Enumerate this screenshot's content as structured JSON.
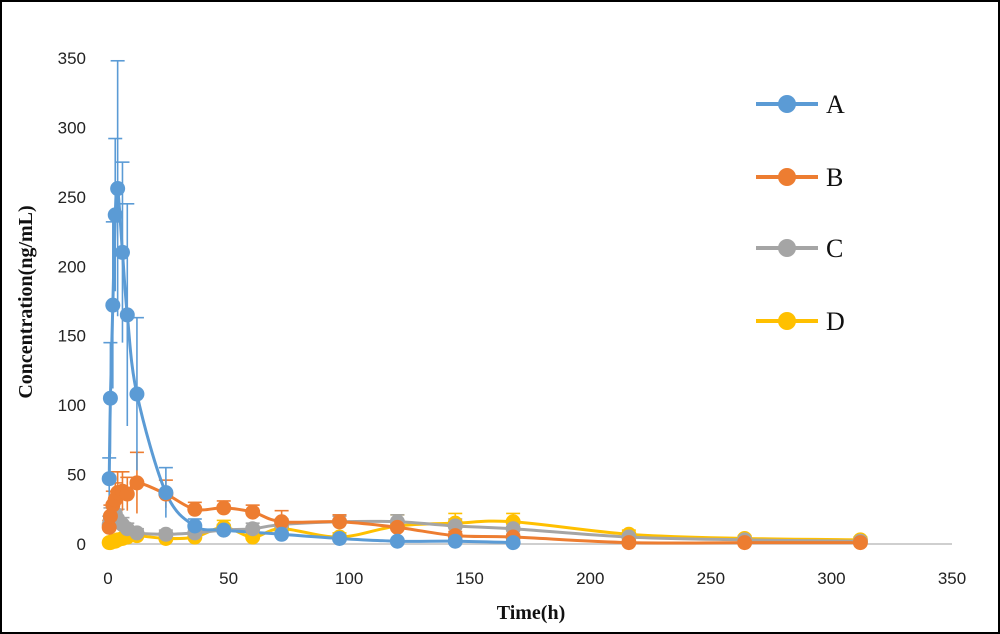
{
  "chart_data": {
    "type": "line",
    "title": "",
    "xlabel": "Time(h)",
    "ylabel": "Concentration(ng/mL)",
    "xlim": [
      0,
      350
    ],
    "ylim": [
      0,
      350
    ],
    "xticks": [
      0,
      50,
      100,
      150,
      200,
      250,
      300,
      350
    ],
    "yticks": [
      0,
      50,
      100,
      150,
      200,
      250,
      300,
      350
    ],
    "grid": false,
    "legend_position": "right",
    "series": [
      {
        "name": "A",
        "color": "#5B9BD5",
        "x": [
          0.5,
          1,
          2,
          3,
          4,
          6,
          8,
          12,
          24,
          36,
          48,
          72,
          96,
          120,
          144,
          168
        ],
        "y": [
          47,
          105,
          172,
          237,
          256,
          210,
          165,
          108,
          37,
          13,
          10,
          7,
          4,
          2,
          2,
          1
        ],
        "err": [
          15,
          40,
          60,
          55,
          92,
          65,
          80,
          55,
          18,
          5,
          4,
          3,
          2,
          1,
          1,
          1
        ]
      },
      {
        "name": "B",
        "color": "#ED7D31",
        "x": [
          0.5,
          1,
          2,
          3,
          4,
          6,
          8,
          12,
          24,
          36,
          48,
          60,
          72,
          96,
          120,
          144,
          168,
          216,
          264,
          312
        ],
        "y": [
          12,
          20,
          28,
          32,
          37,
          38,
          36,
          44,
          36,
          25,
          26,
          23,
          16,
          16,
          12,
          6,
          5,
          1,
          1,
          1
        ],
        "err": [
          5,
          8,
          10,
          12,
          15,
          14,
          12,
          22,
          10,
          5,
          5,
          5,
          8,
          5,
          4,
          3,
          2,
          1,
          1,
          1
        ]
      },
      {
        "name": "C",
        "color": "#A5A5A5",
        "x": [
          0.5,
          1,
          2,
          3,
          4,
          6,
          8,
          12,
          24,
          36,
          48,
          60,
          72,
          96,
          120,
          144,
          168,
          216,
          264,
          312
        ],
        "y": [
          14,
          18,
          20,
          22,
          18,
          14,
          11,
          8,
          7,
          8,
          10,
          11,
          14,
          16,
          16,
          13,
          11,
          5,
          3,
          2
        ],
        "err": [
          6,
          8,
          8,
          9,
          7,
          5,
          4,
          3,
          3,
          3,
          3,
          4,
          4,
          4,
          5,
          5,
          4,
          2,
          1,
          1
        ]
      },
      {
        "name": "D",
        "color": "#FFC000",
        "x": [
          0.5,
          1,
          2,
          3,
          4,
          6,
          8,
          12,
          24,
          36,
          48,
          60,
          72,
          96,
          120,
          144,
          168,
          216,
          264,
          312
        ],
        "y": [
          1,
          1,
          2,
          2,
          3,
          4,
          5,
          6,
          4,
          5,
          12,
          5,
          11,
          5,
          13,
          15,
          16,
          7,
          4,
          3
        ],
        "err": [
          1,
          1,
          1,
          1,
          1,
          2,
          2,
          2,
          3,
          3,
          5,
          3,
          4,
          3,
          8,
          7,
          6,
          3,
          2,
          2
        ]
      }
    ]
  }
}
